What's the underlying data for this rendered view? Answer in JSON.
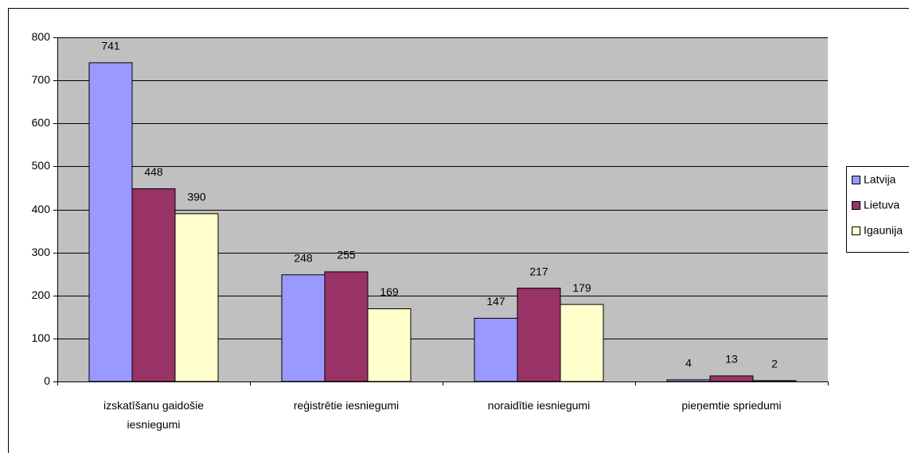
{
  "chart_data": {
    "type": "bar",
    "categories": [
      "izskatīšanu gaidošie iesniegumi",
      "reģistrētie iesniegumi",
      "noraidītie iesniegumi",
      "pieņemtie spriedumi"
    ],
    "series": [
      {
        "name": "Latvija",
        "color": "#9999ff",
        "values": [
          741,
          248,
          147,
          4
        ]
      },
      {
        "name": "Lietuva",
        "color": "#993366",
        "values": [
          448,
          255,
          217,
          13
        ]
      },
      {
        "name": "Igaunija",
        "color": "#ffffcc",
        "values": [
          390,
          169,
          179,
          2
        ]
      }
    ],
    "ylim": [
      0,
      800
    ],
    "yticks": [
      0,
      100,
      200,
      300,
      400,
      500,
      600,
      700,
      800
    ],
    "grid": true,
    "legend": "right",
    "plot_background": "#c0c0c0"
  }
}
